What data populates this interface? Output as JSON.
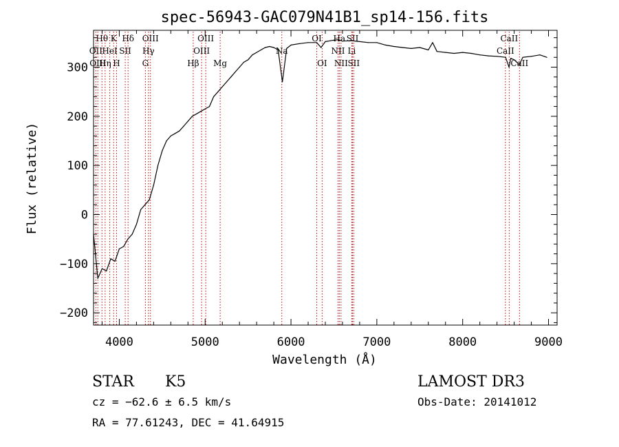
{
  "chart_data": {
    "type": "line",
    "title": "spec-56943-GAC079N41B1_sp14-156.fits",
    "xlabel": "Wavelength (Å)",
    "ylabel": "Flux (relative)",
    "xlim": [
      3700,
      9100
    ],
    "ylim": [
      -225,
      375
    ],
    "x_ticks": [
      4000,
      5000,
      6000,
      7000,
      8000,
      9000
    ],
    "y_ticks": [
      -200,
      -100,
      0,
      100,
      200,
      300
    ],
    "series": [
      {
        "name": "flux",
        "x": [
          3700,
          3750,
          3800,
          3850,
          3900,
          3950,
          4000,
          4050,
          4100,
          4150,
          4200,
          4250,
          4300,
          4350,
          4400,
          4450,
          4500,
          4550,
          4600,
          4650,
          4700,
          4750,
          4800,
          4850,
          4900,
          4950,
          5000,
          5050,
          5100,
          5150,
          5200,
          5250,
          5300,
          5350,
          5400,
          5450,
          5500,
          5550,
          5600,
          5650,
          5700,
          5750,
          5800,
          5850,
          5900,
          5950,
          6000,
          6100,
          6200,
          6300,
          6350,
          6400,
          6500,
          6550,
          6600,
          6700,
          6800,
          6900,
          7000,
          7100,
          7200,
          7300,
          7400,
          7500,
          7600,
          7650,
          7700,
          7800,
          7900,
          8000,
          8100,
          8200,
          8300,
          8400,
          8500,
          8540,
          8560,
          8600,
          8660,
          8700,
          8800,
          8900,
          8980
        ],
        "y": [
          -40,
          -130,
          -110,
          -115,
          -90,
          -95,
          -70,
          -65,
          -50,
          -40,
          -20,
          10,
          20,
          30,
          60,
          100,
          130,
          150,
          160,
          165,
          170,
          180,
          190,
          200,
          205,
          210,
          215,
          220,
          240,
          250,
          260,
          270,
          280,
          290,
          300,
          310,
          315,
          325,
          330,
          335,
          340,
          342,
          340,
          335,
          270,
          338,
          345,
          348,
          350,
          350,
          340,
          352,
          355,
          356,
          353,
          354,
          352,
          350,
          350,
          345,
          342,
          340,
          338,
          340,
          335,
          350,
          332,
          330,
          328,
          330,
          328,
          325,
          323,
          322,
          320,
          300,
          318,
          315,
          305,
          320,
          322,
          325,
          320
        ]
      }
    ],
    "line_markers": [
      {
        "label": "Hθ",
        "x": 3798,
        "row": 0
      },
      {
        "label": "K",
        "x": 3934,
        "row": 0
      },
      {
        "label": "Hδ",
        "x": 4102,
        "row": 0
      },
      {
        "label": "OIII",
        "x": 4363,
        "row": 0
      },
      {
        "label": "OIII",
        "x": 5007,
        "row": 0
      },
      {
        "label": "OI",
        "x": 6300,
        "row": 0
      },
      {
        "label": "Ha",
        "x": 6563,
        "row": 0
      },
      {
        "label": "SII",
        "x": 6717,
        "row": 0
      },
      {
        "label": "CaII",
        "x": 8542,
        "row": 0
      },
      {
        "label": "OII",
        "x": 3727,
        "row": 1
      },
      {
        "label": "HeI",
        "x": 3889,
        "row": 1
      },
      {
        "label": "SII",
        "x": 4069,
        "row": 1
      },
      {
        "label": "Hγ",
        "x": 4340,
        "row": 1
      },
      {
        "label": "OIII",
        "x": 4959,
        "row": 1
      },
      {
        "label": "Na",
        "x": 5893,
        "row": 1
      },
      {
        "label": "NII",
        "x": 6548,
        "row": 1
      },
      {
        "label": "Li",
        "x": 6708,
        "row": 1
      },
      {
        "label": "CaII",
        "x": 8498,
        "row": 1
      },
      {
        "label": "OIII",
        "x": 3750,
        "row": 2
      },
      {
        "label": "Hη",
        "x": 3835,
        "row": 2
      },
      {
        "label": "H",
        "x": 3968,
        "row": 2
      },
      {
        "label": "G",
        "x": 4304,
        "row": 2
      },
      {
        "label": "Hβ",
        "x": 4861,
        "row": 2
      },
      {
        "label": "Mg",
        "x": 5175,
        "row": 2
      },
      {
        "label": "OI",
        "x": 6363,
        "row": 2
      },
      {
        "label": "NII",
        "x": 6583,
        "row": 2
      },
      {
        "label": "SII",
        "x": 6731,
        "row": 2
      },
      {
        "label": "CaII",
        "x": 8662,
        "row": 2
      }
    ]
  },
  "info": {
    "object_class": "STAR",
    "subclass": "K5",
    "survey": "LAMOST DR3",
    "redshift": "cz = −62.6 ± 6.5 km/s",
    "obs_date": "Obs-Date: 20141012",
    "coords": "RA =  77.61243, DEC =  41.64915"
  }
}
